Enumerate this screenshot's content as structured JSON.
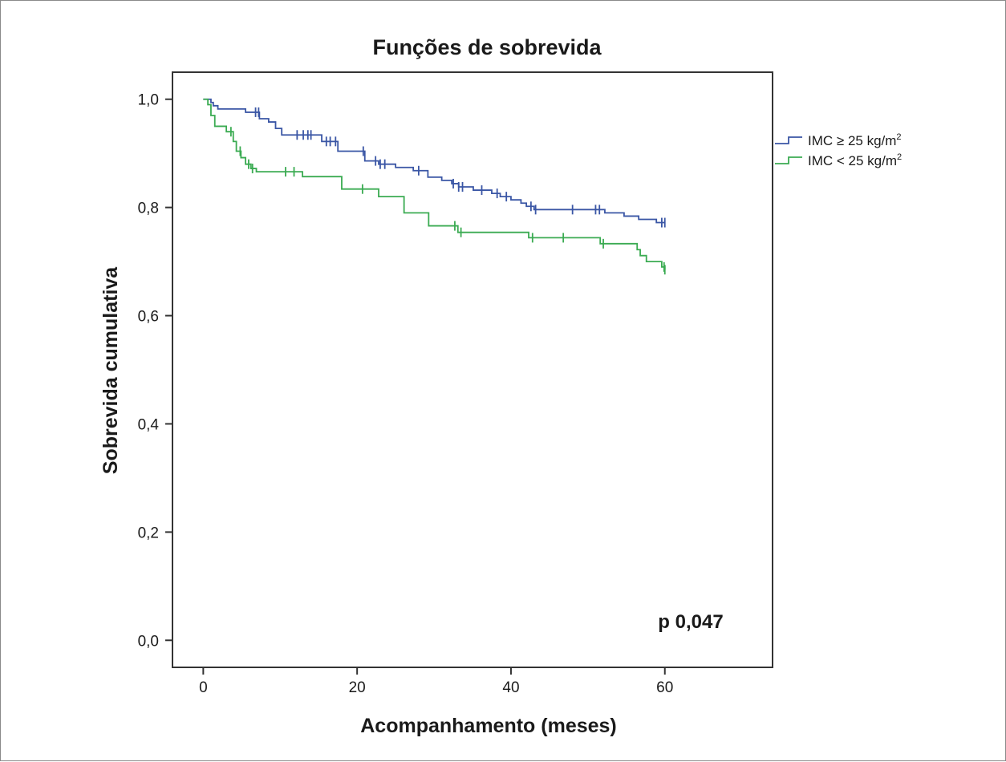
{
  "chart_data": {
    "type": "line",
    "title": "Funções de sobrevida",
    "xlabel": "Acompanhamento (meses)",
    "ylabel": "Sobrevida cumulativa",
    "xlim": [
      -4,
      74
    ],
    "ylim": [
      -0.05,
      1.05
    ],
    "x_ticks": [
      0,
      20,
      40,
      60
    ],
    "x_tick_labels": [
      "0",
      "20",
      "40",
      "60"
    ],
    "y_ticks": [
      0.0,
      0.2,
      0.4,
      0.6,
      0.8,
      1.0
    ],
    "y_tick_labels": [
      "0,0",
      "0,2",
      "0,4",
      "0,6",
      "0,8",
      "1,0"
    ],
    "grid": false,
    "legend_position": "top-right outside plot",
    "annotation": "p 0,047",
    "series": [
      {
        "name": "IMC ≥ 25 kg/m",
        "name_sup": "2",
        "color": "#3a56a5",
        "step_x": [
          0,
          1.0,
          1.3,
          1.9,
          5.5,
          7.3,
          8.5,
          9.4,
          10.2,
          15.4,
          17.5,
          21.0,
          22.8,
          25.0,
          27.3,
          29.2,
          31.0,
          32.3,
          33.2,
          35.1,
          37.5,
          38.6,
          40.0,
          41.3,
          42.0,
          43.0,
          52.2,
          54.7,
          56.6,
          58.9,
          60
        ],
        "step_y": [
          1.0,
          0.994,
          0.988,
          0.982,
          0.976,
          0.964,
          0.958,
          0.946,
          0.934,
          0.922,
          0.904,
          0.886,
          0.88,
          0.874,
          0.868,
          0.856,
          0.85,
          0.844,
          0.838,
          0.832,
          0.826,
          0.82,
          0.814,
          0.808,
          0.802,
          0.796,
          0.79,
          0.784,
          0.778,
          0.772,
          0.772
        ],
        "censored_x": [
          6.8,
          7.2,
          12.2,
          13.0,
          13.6,
          14.0,
          16.0,
          16.5,
          17.2,
          20.8,
          22.4,
          23.0,
          23.6,
          28.0,
          32.5,
          33.2,
          33.7,
          36.2,
          38.2,
          39.4,
          42.6,
          43.2,
          48.0,
          51.0,
          51.5,
          59.6,
          60.0
        ]
      },
      {
        "name": "IMC < 25 kg/m",
        "name_sup": "2",
        "color": "#3bab52",
        "step_x": [
          0,
          0.6,
          1.0,
          1.5,
          3.0,
          3.9,
          4.3,
          4.9,
          5.5,
          6.2,
          6.9,
          12.9,
          18.0,
          22.8,
          26.1,
          29.3,
          33.1,
          42.3,
          51.6,
          56.4,
          56.8,
          57.6,
          59.6,
          60
        ],
        "step_y": [
          1.0,
          0.99,
          0.97,
          0.95,
          0.94,
          0.922,
          0.904,
          0.892,
          0.88,
          0.872,
          0.866,
          0.857,
          0.834,
          0.82,
          0.79,
          0.766,
          0.754,
          0.744,
          0.733,
          0.722,
          0.711,
          0.7,
          0.69,
          0.685
        ],
        "censored_x": [
          3.6,
          4.8,
          5.9,
          6.4,
          10.7,
          11.8,
          20.7,
          32.7,
          33.5,
          42.8,
          46.8,
          52.0,
          59.9,
          60.0
        ]
      }
    ]
  }
}
